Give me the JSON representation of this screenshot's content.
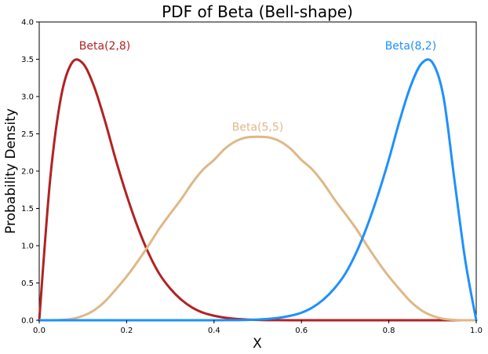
{
  "chart_data": {
    "type": "line",
    "title": "PDF of Beta (Bell-shape)",
    "xlabel": "X",
    "ylabel": "Probability Density",
    "xlim": [
      0,
      1
    ],
    "ylim": [
      0,
      4
    ],
    "x_ticks": [
      0,
      0.2,
      0.4,
      0.6,
      0.8,
      1
    ],
    "x_tick_labels": [
      "0.0",
      "0.2",
      "0.4",
      "0.6",
      "0.8",
      "1.0"
    ],
    "y_ticks": [
      0,
      0.5,
      1,
      1.5,
      2,
      2.5,
      3,
      3.5,
      4
    ],
    "y_tick_labels": [
      "0.0",
      "0.5",
      "1.0",
      "1.5",
      "2.0",
      "2.5",
      "3.0",
      "3.5",
      "4.0"
    ],
    "grid": false,
    "x": [
      0,
      0.025,
      0.05,
      0.075,
      0.1,
      0.125,
      0.15,
      0.175,
      0.2,
      0.225,
      0.25,
      0.275,
      0.3,
      0.325,
      0.35,
      0.375,
      0.4,
      0.425,
      0.45,
      0.475,
      0.5,
      0.525,
      0.55,
      0.575,
      0.6,
      0.625,
      0.65,
      0.675,
      0.7,
      0.725,
      0.75,
      0.775,
      0.8,
      0.825,
      0.85,
      0.875,
      0.9,
      0.925,
      0.95,
      0.975,
      1
    ],
    "series": [
      {
        "label": "Beta(2,8)",
        "color": "#b22222",
        "values": [
          0,
          1.888,
          2.998,
          3.454,
          3.444,
          3.143,
          2.682,
          2.156,
          1.678,
          1.256,
          0.901,
          0.621,
          0.424,
          0.276,
          0.17,
          0.101,
          0.0604,
          0.0341,
          0.0181,
          0.009,
          0.0039,
          0.0017,
          0.0007,
          0.0003,
          0.0001,
          0,
          0,
          0,
          0,
          0,
          0,
          0,
          0,
          0,
          0,
          0,
          0,
          0,
          0,
          0,
          0
        ]
      },
      {
        "label": "Beta(5,5)",
        "color": "#deb887",
        "values": [
          0,
          0.0,
          0.004,
          0.019,
          0.059,
          0.132,
          0.25,
          0.412,
          0.587,
          0.786,
          1.002,
          1.23,
          1.43,
          1.625,
          1.84,
          2.021,
          2.15,
          2.301,
          2.402,
          2.452,
          2.461,
          2.452,
          2.402,
          2.301,
          2.15,
          2.021,
          1.84,
          1.625,
          1.43,
          1.23,
          1.002,
          0.786,
          0.587,
          0.412,
          0.25,
          0.132,
          0.059,
          0.019,
          0.004,
          0.0,
          0
        ]
      },
      {
        "label": "Beta(8,2)",
        "color": "#1e90ff",
        "values": [
          0,
          0,
          0,
          0,
          0,
          0,
          0,
          0,
          0,
          0,
          0,
          0,
          0,
          0,
          0,
          0.0001,
          0.0003,
          0.0007,
          0.0017,
          0.0039,
          0.009,
          0.0181,
          0.0341,
          0.0604,
          0.101,
          0.17,
          0.276,
          0.424,
          0.621,
          0.901,
          1.256,
          1.678,
          2.156,
          2.682,
          3.143,
          3.444,
          3.454,
          2.998,
          1.888,
          0.8,
          0
        ]
      }
    ],
    "annotations": [
      {
        "text": "Beta(2,8)",
        "x": 0.15,
        "y": 3.63,
        "color": "#b22222"
      },
      {
        "text": "Beta(5,5)",
        "x": 0.5,
        "y": 2.54,
        "color": "#deb887"
      },
      {
        "text": "Beta(8,2)",
        "x": 0.85,
        "y": 3.63,
        "color": "#1e90ff"
      }
    ]
  }
}
